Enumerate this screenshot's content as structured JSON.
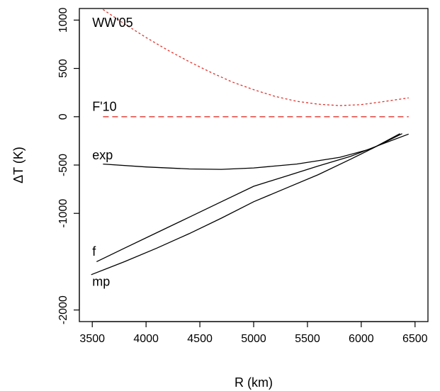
{
  "chart_data": {
    "type": "line",
    "title": "",
    "xlabel": "R (km)",
    "ylabel": "ΔT (K)",
    "xlim": [
      3380,
      6620
    ],
    "ylim": [
      -2120,
      1120
    ],
    "x_ticks": [
      3500,
      4000,
      4500,
      5000,
      5500,
      6000,
      6500
    ],
    "y_ticks": [
      -2000,
      -1000,
      -500,
      0,
      500,
      1000
    ],
    "grid": false,
    "legend": "none",
    "series": [
      {
        "name": "WW'05",
        "color": "#e0342c",
        "dash": "dotted",
        "label_at": [
          3500,
          930
        ],
        "x": [
          3600,
          3800,
          4000,
          4200,
          4400,
          4600,
          4800,
          5000,
          5200,
          5400,
          5600,
          5800,
          6000,
          6200,
          6440
        ],
        "y": [
          1110,
          960,
          820,
          690,
          570,
          460,
          360,
          280,
          210,
          160,
          130,
          115,
          125,
          155,
          195
        ]
      },
      {
        "name": "F'10",
        "color": "#e0342c",
        "dash": "dashed",
        "label_at": [
          3500,
          60
        ],
        "x": [
          3600,
          6440
        ],
        "y": [
          0,
          0
        ]
      },
      {
        "name": "exp",
        "color": "#000000",
        "dash": "solid",
        "label_at": [
          3500,
          -440
        ],
        "x": [
          3600,
          4000,
          4400,
          4700,
          5000,
          5400,
          5800,
          6100,
          6380
        ],
        "y": [
          -490,
          -520,
          -540,
          -545,
          -530,
          -490,
          -420,
          -330,
          -175
        ]
      },
      {
        "name": "f",
        "color": "#000000",
        "dash": "solid",
        "label_at": [
          3500,
          -1440
        ],
        "x": [
          3540,
          3800,
          4100,
          4400,
          4700,
          5000,
          5300,
          5600,
          5900,
          6200,
          6440
        ],
        "y": [
          -1500,
          -1360,
          -1200,
          -1040,
          -880,
          -720,
          -615,
          -510,
          -410,
          -280,
          -180
        ]
      },
      {
        "name": "mp",
        "color": "#000000",
        "dash": "solid",
        "label_at": [
          3500,
          -1750
        ],
        "x": [
          3490,
          3800,
          4100,
          4400,
          4700,
          5000,
          5300,
          5600,
          5900,
          6100,
          6360
        ],
        "y": [
          -1635,
          -1500,
          -1360,
          -1210,
          -1050,
          -880,
          -740,
          -600,
          -440,
          -330,
          -175
        ]
      }
    ]
  }
}
